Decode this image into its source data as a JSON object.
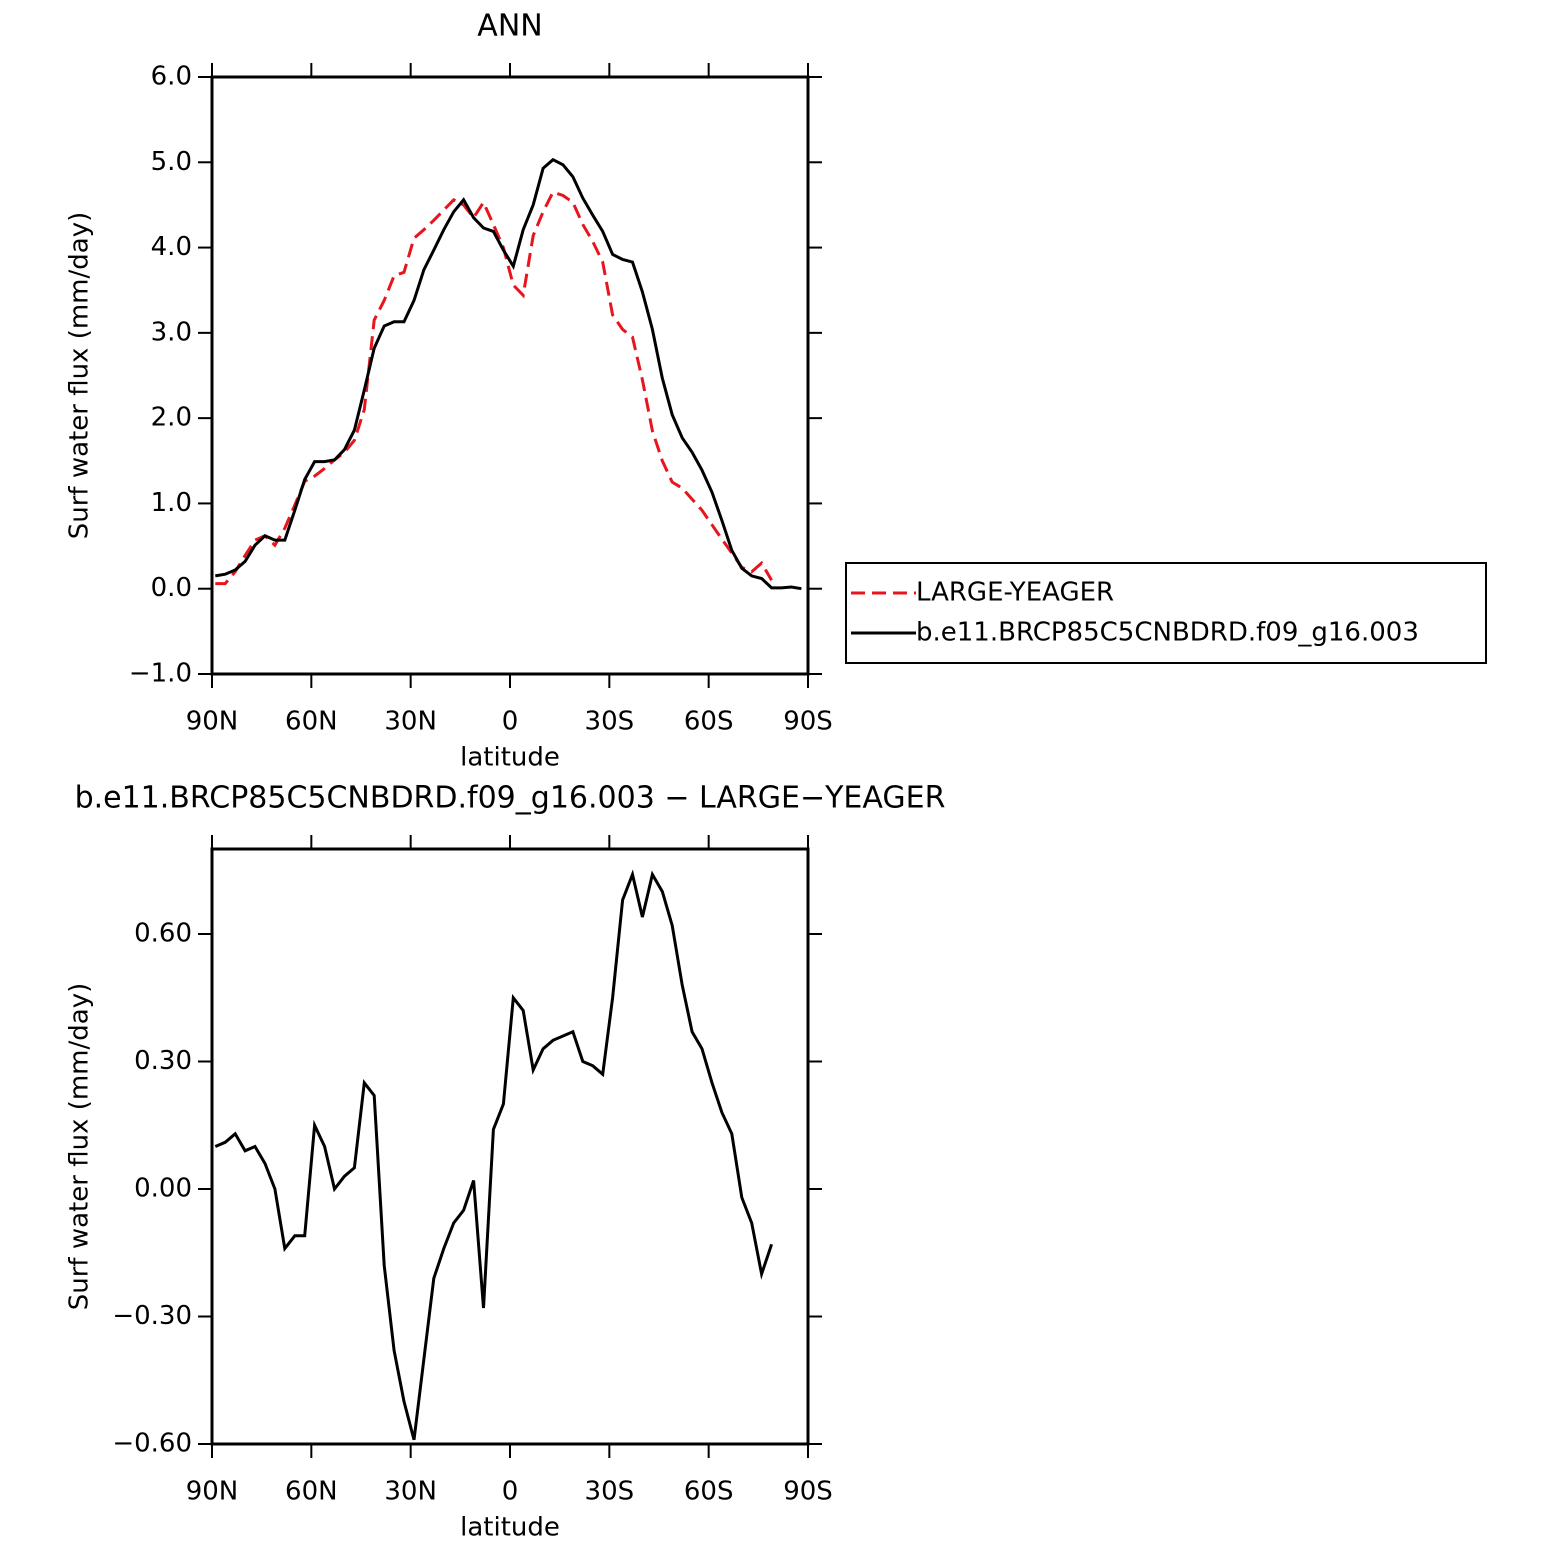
{
  "chart_data": [
    {
      "type": "line",
      "title": "ANN",
      "x_label": "latitude",
      "y_label": "Surf water flux (mm/day)",
      "x": [
        89,
        86,
        83,
        80,
        77,
        74,
        71,
        68,
        65,
        62,
        59,
        56,
        53,
        50,
        47,
        44,
        41,
        38,
        35,
        32,
        29,
        26,
        23,
        20,
        17,
        14,
        11,
        8,
        5,
        2,
        -1,
        -4,
        -7,
        -10,
        -13,
        -16,
        -19,
        -22,
        -25,
        -28,
        -31,
        -34,
        -37,
        -40,
        -43,
        -46,
        -49,
        -52,
        -55,
        -58,
        -61,
        -64,
        -67,
        -70,
        -73,
        -76,
        -79,
        -82,
        -85,
        -88
      ],
      "series": [
        {
          "name": "LARGE-YEAGER",
          "color": "#e8141e",
          "linestyle": "dashed",
          "values": [
            0.06,
            0.06,
            0.2,
            0.39,
            0.57,
            0.62,
            0.51,
            0.71,
            0.98,
            1.26,
            1.32,
            1.41,
            1.51,
            1.6,
            1.74,
            2.1,
            3.15,
            3.38,
            3.67,
            3.71,
            4.11,
            4.21,
            4.32,
            4.44,
            4.56,
            4.5,
            4.35,
            4.53,
            4.27,
            4.0,
            3.56,
            3.44,
            4.14,
            4.42,
            4.65,
            4.61,
            4.53,
            4.27,
            4.07,
            3.83,
            3.21,
            3.04,
            2.95,
            2.45,
            1.85,
            1.5,
            1.25,
            1.18,
            1.05,
            0.92,
            0.75,
            0.58,
            0.42,
            0.25,
            0.2,
            0.3,
            0.1,
            null,
            null,
            null
          ]
        },
        {
          "name": "b.e11.BRCP85C5CNBDRD.f09_g16.003",
          "color": "#000000",
          "linestyle": "solid",
          "values": [
            0.15,
            0.17,
            0.22,
            0.32,
            0.51,
            0.62,
            0.57,
            0.57,
            0.92,
            1.28,
            1.49,
            1.49,
            1.51,
            1.63,
            1.86,
            2.33,
            2.82,
            3.08,
            3.13,
            3.13,
            3.38,
            3.74,
            3.97,
            4.21,
            4.42,
            4.56,
            4.35,
            4.23,
            4.19,
            3.97,
            3.78,
            4.21,
            4.5,
            4.93,
            5.03,
            4.97,
            4.83,
            4.58,
            4.38,
            4.19,
            3.92,
            3.86,
            3.83,
            3.48,
            3.04,
            2.47,
            2.04,
            1.77,
            1.6,
            1.39,
            1.13,
            0.8,
            0.45,
            0.24,
            0.15,
            0.12,
            0.01,
            0.01,
            0.02,
            0.0
          ]
        }
      ],
      "xlim": [
        90,
        -90
      ],
      "xticks": [
        {
          "value": 90,
          "label": "90N"
        },
        {
          "value": 60,
          "label": "60N"
        },
        {
          "value": 30,
          "label": "30N"
        },
        0,
        {
          "value": -30,
          "label": "30S"
        },
        {
          "value": -60,
          "label": "60S"
        },
        {
          "value": -90,
          "label": "90S"
        }
      ],
      "ylim": [
        -1,
        6
      ],
      "yticks": [
        {
          "value": -1,
          "label": "−1.0"
        },
        {
          "value": 0,
          "label": "0.0"
        },
        {
          "value": 1,
          "label": "1.0"
        },
        {
          "value": 2,
          "label": "2.0"
        },
        {
          "value": 3,
          "label": "3.0"
        },
        {
          "value": 4,
          "label": "4.0"
        },
        {
          "value": 5,
          "label": "5.0"
        },
        {
          "value": 6,
          "label": "6.0"
        }
      ],
      "legend": "right"
    },
    {
      "type": "line",
      "title": "b.e11.BRCP85C5CNBDRD.f09_g16.003 − LARGE−YEAGER",
      "x_label": "latitude",
      "y_label": "Surf water flux (mm/day)",
      "x": [
        89,
        86,
        83,
        80,
        77,
        74,
        71,
        68,
        65,
        62,
        59,
        56,
        53,
        50,
        47,
        44,
        41,
        38,
        35,
        32,
        29,
        26,
        23,
        20,
        17,
        14,
        11,
        8,
        5,
        2,
        -1,
        -4,
        -7,
        -10,
        -13,
        -16,
        -19,
        -22,
        -25,
        -28,
        -31,
        -34,
        -37,
        -40,
        -43,
        -46,
        -49,
        -52,
        -55,
        -58,
        -61,
        -64,
        -67,
        -70,
        -73,
        -76,
        -79,
        -82,
        -85,
        -88
      ],
      "color": "#000000",
      "values": [
        0.1,
        0.11,
        0.13,
        0.09,
        0.1,
        0.06,
        0.0,
        -0.14,
        -0.11,
        -0.11,
        0.15,
        0.1,
        0.0,
        0.03,
        0.05,
        0.25,
        0.22,
        -0.18,
        -0.38,
        -0.5,
        -0.59,
        -0.4,
        -0.21,
        -0.14,
        -0.08,
        -0.05,
        0.02,
        -0.28,
        0.14,
        0.2,
        0.45,
        0.42,
        0.28,
        0.33,
        0.35,
        0.36,
        0.37,
        0.3,
        0.29,
        0.27,
        0.45,
        0.68,
        0.74,
        0.64,
        0.74,
        0.7,
        0.62,
        0.48,
        0.37,
        0.33,
        0.25,
        0.18,
        0.13,
        -0.02,
        -0.08,
        -0.2,
        -0.13,
        null,
        null,
        null
      ],
      "xlim": [
        90,
        -90
      ],
      "xticks": [
        {
          "value": 90,
          "label": "90N"
        },
        {
          "value": 60,
          "label": "60N"
        },
        {
          "value": 30,
          "label": "30N"
        },
        0,
        {
          "value": -30,
          "label": "30S"
        },
        {
          "value": -60,
          "label": "60S"
        },
        {
          "value": -90,
          "label": "90S"
        }
      ],
      "ylim": [
        -0.6,
        0.8
      ],
      "yticks": [
        {
          "value": -0.6,
          "label": "−0.60"
        },
        {
          "value": -0.3,
          "label": "−0.30"
        },
        {
          "value": 0,
          "label": "0.00"
        },
        {
          "value": 0.3,
          "label": "0.30"
        },
        {
          "value": 0.6,
          "label": "0.60"
        }
      ]
    }
  ]
}
